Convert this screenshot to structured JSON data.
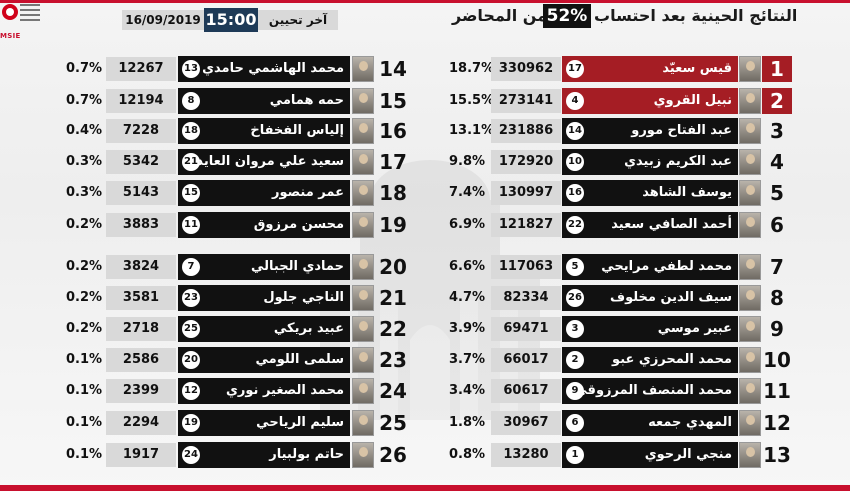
{
  "header": {
    "title_right": "النتائج الحينية بعد احتساب",
    "percent": "52%",
    "title_left": "من المحاضر",
    "date": "16/09/2019",
    "time": "15:00",
    "update_label": "آخر تحيين",
    "logo_text": "MSIE"
  },
  "colors": {
    "accent": "#a51d24",
    "dark": "#111111",
    "time_bg": "#1e3a57",
    "value_bg": "#d9d9d9"
  },
  "candidates_right": [
    {
      "rank": "1",
      "name": "قيس سعيّد",
      "ballot": "17",
      "votes": "330962",
      "pct": "18.7%",
      "highlight": true
    },
    {
      "rank": "2",
      "name": "نبيل القروي",
      "ballot": "4",
      "votes": "273141",
      "pct": "15.5%",
      "highlight": true
    },
    {
      "rank": "3",
      "name": "عبد الفتاح مورو",
      "ballot": "14",
      "votes": "231886",
      "pct": "13.1%"
    },
    {
      "rank": "4",
      "name": "عبد الكريم زبيدي",
      "ballot": "10",
      "votes": "172920",
      "pct": "9.8%"
    },
    {
      "rank": "5",
      "name": "يوسف الشاهد",
      "ballot": "16",
      "votes": "130997",
      "pct": "7.4%"
    },
    {
      "rank": "6",
      "name": "أحمد الصافي سعيد",
      "ballot": "22",
      "votes": "121827",
      "pct": "6.9%"
    },
    {
      "rank": "7",
      "name": "محمد لطفي مرايحي",
      "ballot": "5",
      "votes": "117063",
      "pct": "6.6%"
    },
    {
      "rank": "8",
      "name": "سيف الدين مخلوف",
      "ballot": "26",
      "votes": "82334",
      "pct": "4.7%"
    },
    {
      "rank": "9",
      "name": "عبير موسي",
      "ballot": "3",
      "votes": "69471",
      "pct": "3.9%"
    },
    {
      "rank": "10",
      "name": "محمد المحرزي عبو",
      "ballot": "2",
      "votes": "66017",
      "pct": "3.7%"
    },
    {
      "rank": "11",
      "name": "محمد المنصف المرزوقي",
      "ballot": "9",
      "votes": "60617",
      "pct": "3.4%"
    },
    {
      "rank": "12",
      "name": "المهدي جمعه",
      "ballot": "6",
      "votes": "30967",
      "pct": "1.8%"
    },
    {
      "rank": "13",
      "name": "منجي الرحوي",
      "ballot": "1",
      "votes": "13280",
      "pct": "0.8%"
    }
  ],
  "candidates_left": [
    {
      "rank": "14",
      "name": "محمد الهاشمي حامدي",
      "ballot": "13",
      "votes": "12267",
      "pct": "0.7%"
    },
    {
      "rank": "15",
      "name": "حمه همامي",
      "ballot": "8",
      "votes": "12194",
      "pct": "0.7%"
    },
    {
      "rank": "16",
      "name": "إلياس الفخفاخ",
      "ballot": "18",
      "votes": "7228",
      "pct": "0.4%"
    },
    {
      "rank": "17",
      "name": "سعيد علي مروان العايدي",
      "ballot": "21",
      "votes": "5342",
      "pct": "0.3%"
    },
    {
      "rank": "18",
      "name": "عمر منصور",
      "ballot": "15",
      "votes": "5143",
      "pct": "0.3%"
    },
    {
      "rank": "19",
      "name": "محسن مرزوق",
      "ballot": "11",
      "votes": "3883",
      "pct": "0.2%"
    },
    {
      "rank": "20",
      "name": "حمادي الجبالي",
      "ballot": "7",
      "votes": "3824",
      "pct": "0.2%"
    },
    {
      "rank": "21",
      "name": "الناجي جلول",
      "ballot": "23",
      "votes": "3581",
      "pct": "0.2%"
    },
    {
      "rank": "22",
      "name": "عبيد بريكي",
      "ballot": "25",
      "votes": "2718",
      "pct": "0.2%"
    },
    {
      "rank": "23",
      "name": "سلمى اللومي",
      "ballot": "20",
      "votes": "2586",
      "pct": "0.1%"
    },
    {
      "rank": "24",
      "name": "محمد الصغير نوري",
      "ballot": "12",
      "votes": "2399",
      "pct": "0.1%"
    },
    {
      "rank": "25",
      "name": "سليم الرياحي",
      "ballot": "19",
      "votes": "2294",
      "pct": "0.1%"
    },
    {
      "rank": "26",
      "name": "حاتم بولبيار",
      "ballot": "24",
      "votes": "1917",
      "pct": "0.1%"
    }
  ]
}
